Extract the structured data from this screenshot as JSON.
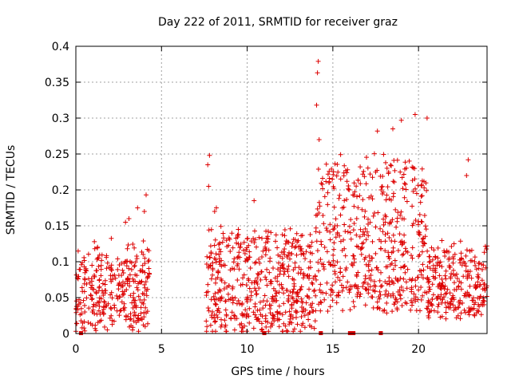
{
  "chart_data": {
    "type": "scatter",
    "title": "Day 222 of 2011, SRMTID for receiver graz",
    "xlabel": "GPS time / hours",
    "ylabel": "SRMTID / TECUs",
    "xlim": [
      0,
      24
    ],
    "ylim": [
      0,
      0.4
    ],
    "xticks": [
      0,
      5,
      10,
      15,
      20
    ],
    "xtick_labels": [
      "0",
      "5",
      "10",
      "15",
      "20"
    ],
    "yticks": [
      0,
      0.05,
      0.1,
      0.15,
      0.2,
      0.25,
      0.3,
      0.35,
      0.4
    ],
    "ytick_labels": [
      "0",
      "0.05",
      "0.1",
      "0.15",
      "0.2",
      "0.25",
      "0.3",
      "0.35",
      "0.4"
    ],
    "grid": true,
    "marker": "+",
    "color": "#dd0000",
    "segments": [
      {
        "x_start": 0.0,
        "x_end": 4.3,
        "y_low": 0.015,
        "y_high": 0.12,
        "count": 320
      },
      {
        "x_start": 7.6,
        "x_end": 14.0,
        "y_low": 0.01,
        "y_high": 0.14,
        "count": 520
      },
      {
        "x_start": 14.0,
        "x_end": 20.5,
        "y_low": 0.04,
        "y_high": 0.24,
        "count": 520
      },
      {
        "x_start": 20.5,
        "x_end": 24.0,
        "y_low": 0.03,
        "y_high": 0.12,
        "count": 260
      }
    ],
    "outliers": [
      {
        "x": 14.15,
        "y": 0.379
      },
      {
        "x": 14.1,
        "y": 0.363
      },
      {
        "x": 14.05,
        "y": 0.318
      },
      {
        "x": 19.8,
        "y": 0.305
      },
      {
        "x": 20.5,
        "y": 0.3
      },
      {
        "x": 19.0,
        "y": 0.297
      },
      {
        "x": 18.5,
        "y": 0.285
      },
      {
        "x": 17.6,
        "y": 0.282
      },
      {
        "x": 14.2,
        "y": 0.27
      },
      {
        "x": 7.8,
        "y": 0.248
      },
      {
        "x": 22.9,
        "y": 0.242
      },
      {
        "x": 7.7,
        "y": 0.235
      },
      {
        "x": 22.8,
        "y": 0.22
      },
      {
        "x": 7.75,
        "y": 0.205
      },
      {
        "x": 4.1,
        "y": 0.193
      },
      {
        "x": 10.4,
        "y": 0.185
      },
      {
        "x": 3.6,
        "y": 0.175
      },
      {
        "x": 4.0,
        "y": 0.17
      },
      {
        "x": 8.1,
        "y": 0.17
      },
      {
        "x": 8.2,
        "y": 0.175
      },
      {
        "x": 2.9,
        "y": 0.155
      },
      {
        "x": 3.1,
        "y": 0.16
      }
    ],
    "zero_markers": [
      0.3,
      11.0,
      14.3,
      16.0,
      16.1,
      16.2,
      17.8
    ]
  }
}
